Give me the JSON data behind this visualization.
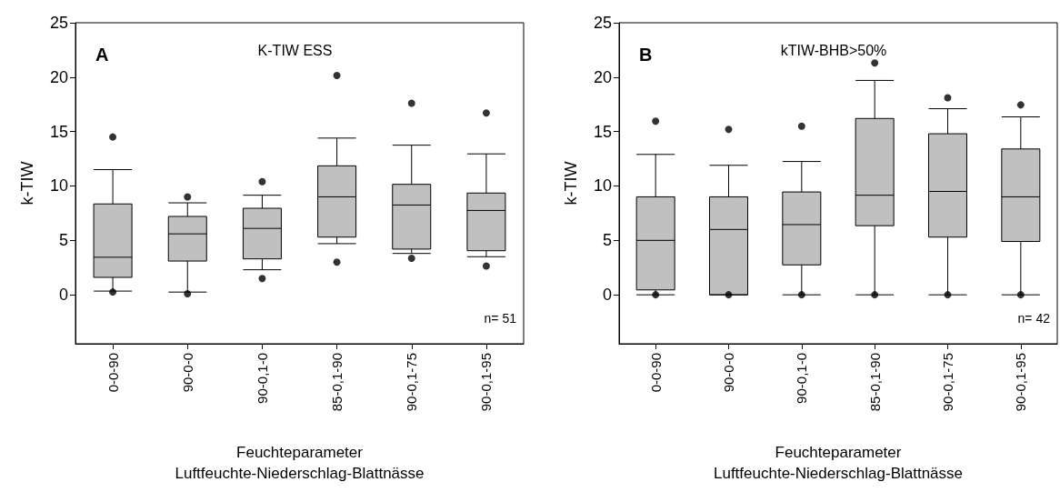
{
  "chart_data": [
    {
      "type": "box",
      "title": "K-TIW ESS",
      "xlabel": "Feuchteparameter\nLuftfeuchte-Niederschlag-Blattnässe",
      "ylabel": "k-TIW",
      "categories": [
        "0-0-90",
        "90-0-0",
        "90-0,1-0",
        "85-0,1-90",
        "90-0,1-75",
        "90-0,1-95"
      ],
      "boxes": [
        {
          "low": 0.34,
          "q1": 1.6,
          "median": 3.45,
          "q3": 8.35,
          "high": 11.5,
          "outliers": [
            14.5,
            0.25
          ]
        },
        {
          "low": 0.25,
          "q1": 3.1,
          "median": 5.6,
          "q3": 7.2,
          "high": 8.45,
          "outliers": [
            9.0,
            0.1
          ]
        },
        {
          "low": 2.3,
          "q1": 3.3,
          "median": 6.1,
          "q3": 7.95,
          "high": 9.15,
          "outliers": [
            10.4,
            1.5
          ]
        },
        {
          "low": 4.7,
          "q1": 5.3,
          "median": 9.0,
          "q3": 11.85,
          "high": 14.4,
          "outliers": [
            20.15,
            3.0
          ]
        },
        {
          "low": 3.8,
          "q1": 4.2,
          "median": 8.25,
          "q3": 10.15,
          "high": 13.75,
          "outliers": [
            17.6,
            3.35
          ]
        },
        {
          "low": 3.5,
          "q1": 4.05,
          "median": 7.75,
          "q3": 9.35,
          "high": 12.95,
          "outliers": [
            16.7,
            2.65
          ]
        }
      ],
      "color": "#c0c0c0",
      "ylim": [
        -4.5,
        25
      ],
      "yticks": [
        0,
        5,
        10,
        15,
        20,
        25
      ],
      "grid": false,
      "annotations": [
        "A",
        "n= 51"
      ]
    },
    {
      "type": "box",
      "title": "kTIW-BHB>50%",
      "xlabel": "Feuchteparameter\nLuftfeuchte-Niederschlag-Blattnässe",
      "ylabel": "k-TIW",
      "categories": [
        "0-0-90",
        "90-0-0",
        "90-0,1-0",
        "85-0,1-90",
        "90-0,1-75",
        "90-0,1-95"
      ],
      "boxes": [
        {
          "low": 0,
          "q1": 0.45,
          "median": 5.0,
          "q3": 9.0,
          "high": 12.9,
          "outliers": [
            15.95,
            0
          ]
        },
        {
          "low": 0,
          "q1": 0,
          "median": 6.0,
          "q3": 9.0,
          "high": 11.9,
          "outliers": [
            15.2,
            0
          ]
        },
        {
          "low": 0,
          "q1": 2.75,
          "median": 6.45,
          "q3": 9.45,
          "high": 12.25,
          "outliers": [
            15.5,
            0
          ]
        },
        {
          "low": 0,
          "q1": 6.35,
          "median": 9.15,
          "q3": 16.2,
          "high": 19.7,
          "outliers": [
            21.3,
            0
          ]
        },
        {
          "low": 0,
          "q1": 5.3,
          "median": 9.5,
          "q3": 14.8,
          "high": 17.1,
          "outliers": [
            18.1,
            0
          ]
        },
        {
          "low": 0,
          "q1": 4.9,
          "median": 9.0,
          "q3": 13.4,
          "high": 16.35,
          "outliers": [
            17.45,
            0
          ]
        }
      ],
      "color": "#c0c0c0",
      "ylim": [
        -4.5,
        25
      ],
      "yticks": [
        0,
        5,
        10,
        15,
        20,
        25
      ],
      "grid": false,
      "annotations": [
        "B",
        "n= 42"
      ]
    }
  ]
}
